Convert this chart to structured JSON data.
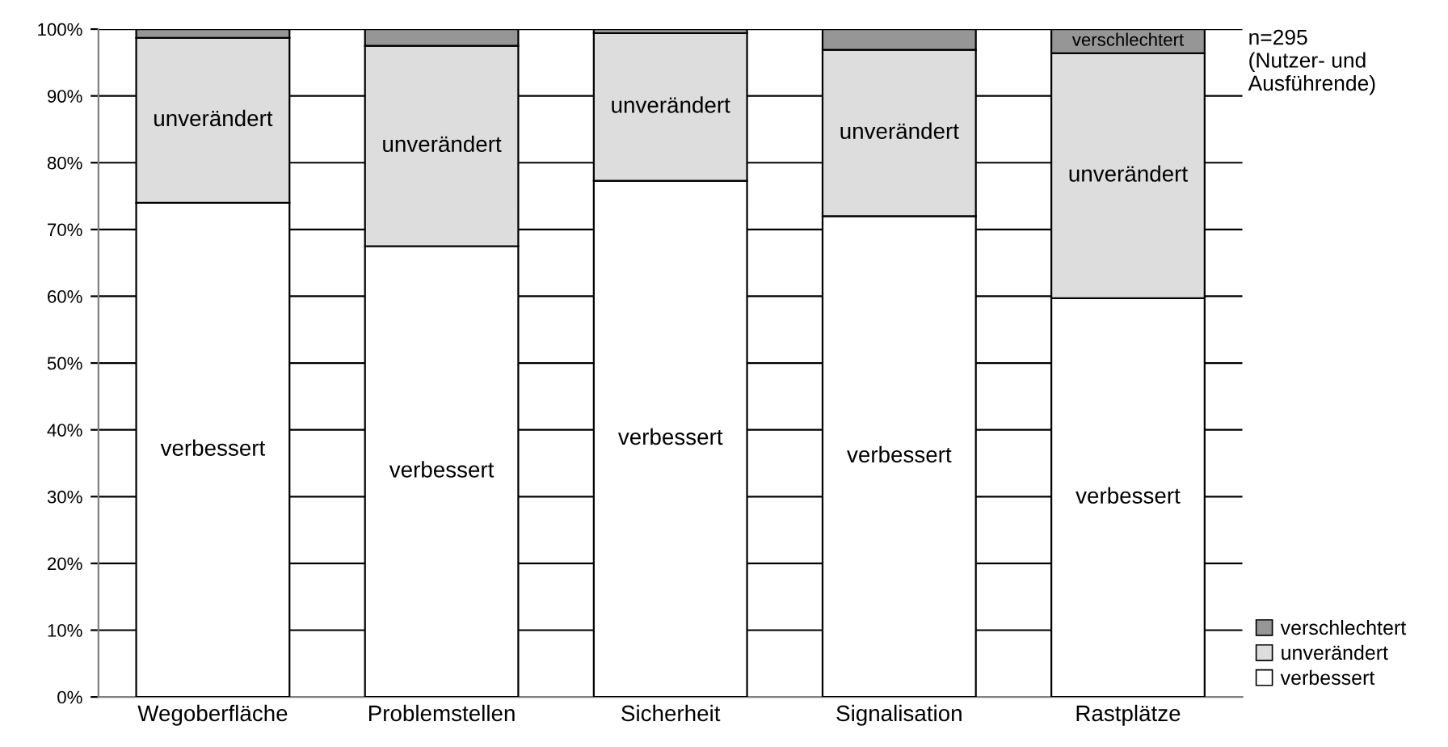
{
  "chart_data": {
    "type": "bar",
    "stacked": true,
    "categories": [
      "Wegoberfläche",
      "Problemstellen",
      "Sicherheit",
      "Signalisation",
      "Rastplätze"
    ],
    "series": [
      {
        "name": "verbessert",
        "color": "#ffffff",
        "values": [
          74,
          67.5,
          77.3,
          72,
          59.7
        ],
        "value_labels": [
          "verbessert",
          "verbessert",
          "verbessert",
          "verbessert",
          "verbessert"
        ]
      },
      {
        "name": "unverändert",
        "color": "#dddddd",
        "values": [
          24.7,
          30,
          22.1,
          24.9,
          36.7
        ],
        "value_labels": [
          "unverändert",
          "unverändert",
          "unverändert",
          "unverändert",
          "unverändert"
        ]
      },
      {
        "name": "verschlechtert",
        "color": "#969696",
        "values": [
          1.3,
          2.5,
          0.6,
          3.1,
          3.6
        ],
        "value_labels": [
          null,
          null,
          null,
          null,
          "verschlechtert"
        ]
      }
    ],
    "ylim": [
      0,
      100
    ],
    "yticks": [
      {
        "value": 0,
        "label": "0%"
      },
      {
        "value": 10,
        "label": "10%"
      },
      {
        "value": 20,
        "label": "20%"
      },
      {
        "value": 30,
        "label": "30%"
      },
      {
        "value": 40,
        "label": "40%"
      },
      {
        "value": 50,
        "label": "50%"
      },
      {
        "value": 60,
        "label": "60%"
      },
      {
        "value": 70,
        "label": "70%"
      },
      {
        "value": 80,
        "label": "80%"
      },
      {
        "value": 90,
        "label": "90%"
      },
      {
        "value": 100,
        "label": "100%"
      }
    ],
    "grid": "y",
    "legend": "bottom right",
    "annotations": [
      "n=295\n(Nutzer- und\nAusführende)"
    ]
  }
}
